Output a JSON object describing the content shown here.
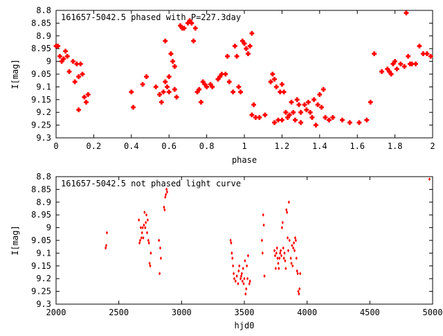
{
  "chart_data": [
    {
      "type": "scatter",
      "title": "161657-5042.5 phased with P=227.3day",
      "xlabel": "phase",
      "ylabel": "I[mag]",
      "xlim": [
        0,
        2
      ],
      "ylim": [
        9.3,
        8.8
      ],
      "y_inverted": true,
      "x_ticks": [
        0,
        0.2,
        0.4,
        0.6,
        0.8,
        1,
        1.2,
        1.4,
        1.6,
        1.8,
        2
      ],
      "x_tick_labels": [
        "0",
        "0.2",
        "0.4",
        "0.6",
        "0.8",
        "1",
        "1.2",
        "1.4",
        "1.6",
        "1.8",
        "2"
      ],
      "y_ticks": [
        8.8,
        8.85,
        8.9,
        8.95,
        9,
        9.05,
        9.1,
        9.15,
        9.2,
        9.25,
        9.3
      ],
      "y_tick_labels": [
        "8.8",
        "8.85",
        "8.9",
        "8.95",
        "9",
        "9.05",
        "9.1",
        "9.15",
        "9.2",
        "9.25",
        "9.3"
      ],
      "grid": false,
      "marker_color": "#ff0000",
      "points": [
        [
          0.0,
          8.94
        ],
        [
          0.01,
          8.94
        ],
        [
          0.02,
          8.98
        ],
        [
          0.03,
          9.0
        ],
        [
          0.04,
          8.99
        ],
        [
          0.05,
          8.96
        ],
        [
          0.06,
          8.98
        ],
        [
          0.07,
          9.04
        ],
        [
          0.09,
          9.0
        ],
        [
          0.1,
          9.08
        ],
        [
          0.11,
          9.01
        ],
        [
          0.12,
          9.06
        ],
        [
          0.13,
          9.01
        ],
        [
          0.12,
          9.19
        ],
        [
          0.14,
          9.05
        ],
        [
          0.15,
          9.14
        ],
        [
          0.16,
          9.16
        ],
        [
          0.17,
          9.13
        ],
        [
          0.4,
          9.12
        ],
        [
          0.41,
          9.18
        ],
        [
          0.46,
          9.09
        ],
        [
          0.48,
          9.06
        ],
        [
          0.53,
          9.1
        ],
        [
          0.55,
          9.13
        ],
        [
          0.56,
          9.16
        ],
        [
          0.57,
          9.12
        ],
        [
          0.58,
          9.08
        ],
        [
          0.59,
          9.1
        ],
        [
          0.58,
          8.92
        ],
        [
          0.6,
          9.12
        ],
        [
          0.6,
          9.06
        ],
        [
          0.61,
          8.97
        ],
        [
          0.62,
          9.0
        ],
        [
          0.63,
          9.11
        ],
        [
          0.63,
          9.02
        ],
        [
          0.64,
          9.14
        ],
        [
          0.66,
          8.86
        ],
        [
          0.67,
          8.87
        ],
        [
          0.68,
          8.87
        ],
        [
          0.7,
          8.85
        ],
        [
          0.71,
          8.84
        ],
        [
          0.72,
          8.85
        ],
        [
          0.73,
          8.92
        ],
        [
          0.74,
          8.87
        ],
        [
          0.75,
          9.12
        ],
        [
          0.76,
          9.11
        ],
        [
          0.77,
          9.16
        ],
        [
          0.78,
          9.08
        ],
        [
          0.79,
          9.09
        ],
        [
          0.8,
          9.1
        ],
        [
          0.82,
          9.09
        ],
        [
          0.83,
          9.1
        ],
        [
          0.86,
          9.07
        ],
        [
          0.87,
          9.06
        ],
        [
          0.88,
          9.05
        ],
        [
          0.9,
          9.05
        ],
        [
          0.91,
          8.98
        ],
        [
          0.92,
          9.08
        ],
        [
          0.94,
          9.12
        ],
        [
          0.95,
          8.94
        ],
        [
          0.96,
          8.98
        ],
        [
          0.97,
          9.1
        ],
        [
          0.98,
          9.12
        ],
        [
          0.99,
          8.92
        ],
        [
          1.0,
          8.93
        ],
        [
          1.01,
          8.95
        ],
        [
          1.02,
          8.97
        ],
        [
          1.03,
          8.94
        ],
        [
          1.04,
          8.89
        ],
        [
          1.04,
          9.21
        ],
        [
          1.05,
          9.17
        ],
        [
          1.06,
          9.22
        ],
        [
          1.08,
          9.22
        ],
        [
          1.11,
          9.21
        ],
        [
          1.14,
          9.08
        ],
        [
          1.15,
          9.05
        ],
        [
          1.16,
          9.07
        ],
        [
          1.17,
          9.1
        ],
        [
          1.16,
          9.24
        ],
        [
          1.18,
          9.23
        ],
        [
          1.19,
          9.12
        ],
        [
          1.2,
          9.09
        ],
        [
          1.2,
          9.23
        ],
        [
          1.21,
          9.12
        ],
        [
          1.22,
          9.2
        ],
        [
          1.23,
          9.22
        ],
        [
          1.24,
          9.21
        ],
        [
          1.25,
          9.16
        ],
        [
          1.26,
          9.2
        ],
        [
          1.27,
          9.23
        ],
        [
          1.28,
          9.15
        ],
        [
          1.29,
          9.17
        ],
        [
          1.3,
          9.2
        ],
        [
          1.3,
          9.24
        ],
        [
          1.32,
          9.17
        ],
        [
          1.33,
          9.19
        ],
        [
          1.34,
          9.16
        ],
        [
          1.35,
          9.2
        ],
        [
          1.36,
          9.22
        ],
        [
          1.37,
          9.15
        ],
        [
          1.38,
          9.25
        ],
        [
          1.39,
          9.17
        ],
        [
          1.4,
          9.13
        ],
        [
          1.41,
          9.18
        ],
        [
          1.42,
          9.11
        ],
        [
          1.43,
          9.22
        ],
        [
          1.45,
          9.23
        ],
        [
          1.47,
          9.22
        ],
        [
          1.52,
          9.23
        ],
        [
          1.56,
          9.24
        ],
        [
          1.61,
          9.24
        ],
        [
          1.65,
          9.23
        ],
        [
          1.67,
          9.16
        ],
        [
          1.69,
          8.97
        ],
        [
          1.73,
          9.04
        ],
        [
          1.76,
          9.03
        ],
        [
          1.77,
          9.04
        ],
        [
          1.78,
          9.05
        ],
        [
          1.79,
          9.01
        ],
        [
          1.8,
          9.0
        ],
        [
          1.81,
          9.03
        ],
        [
          1.83,
          9.01
        ],
        [
          1.85,
          9.02
        ],
        [
          1.86,
          8.81
        ],
        [
          1.87,
          8.98
        ],
        [
          1.88,
          9.01
        ],
        [
          1.89,
          9.01
        ],
        [
          1.91,
          9.01
        ],
        [
          1.93,
          8.94
        ],
        [
          1.95,
          8.97
        ],
        [
          1.97,
          8.97
        ],
        [
          1.99,
          8.98
        ]
      ]
    },
    {
      "type": "scatter",
      "title": "161657-5042.5 not phased light curve",
      "xlabel": "hjd0",
      "ylabel": "I[mag]",
      "xlim": [
        2000,
        5000
      ],
      "ylim": [
        9.3,
        8.8
      ],
      "y_inverted": true,
      "x_ticks": [
        2000,
        2500,
        3000,
        3500,
        4000,
        4500,
        5000
      ],
      "x_tick_labels": [
        "2000",
        "2500",
        "3000",
        "3500",
        "4000",
        "4500",
        "5000"
      ],
      "y_ticks": [
        8.8,
        8.85,
        8.9,
        8.95,
        9,
        9.05,
        9.1,
        9.15,
        9.2,
        9.25,
        9.3
      ],
      "y_tick_labels": [
        "8.8",
        "8.85",
        "8.9",
        "8.95",
        "9",
        "9.05",
        "9.1",
        "9.15",
        "9.2",
        "9.25",
        "9.3"
      ],
      "grid": false,
      "marker_color": "#ff0000",
      "points": [
        [
          2395,
          9.08
        ],
        [
          2400,
          9.07
        ],
        [
          2405,
          9.02
        ],
        [
          2660,
          8.97
        ],
        [
          2665,
          9.06
        ],
        [
          2670,
          9.05
        ],
        [
          2675,
          9.0
        ],
        [
          2680,
          9.04
        ],
        [
          2685,
          9.02
        ],
        [
          2690,
          9.0
        ],
        [
          2695,
          9.04
        ],
        [
          2700,
          8.99
        ],
        [
          2705,
          8.94
        ],
        [
          2710,
          9.0
        ],
        [
          2715,
          8.98
        ],
        [
          2720,
          8.95
        ],
        [
          2725,
          9.02
        ],
        [
          2730,
          8.97
        ],
        [
          2735,
          9.05
        ],
        [
          2740,
          9.06
        ],
        [
          2745,
          9.14
        ],
        [
          2750,
          9.15
        ],
        [
          2755,
          9.1
        ],
        [
          2820,
          9.05
        ],
        [
          2825,
          9.18
        ],
        [
          2830,
          9.08
        ],
        [
          2835,
          9.12
        ],
        [
          2860,
          8.92
        ],
        [
          2865,
          8.93
        ],
        [
          2870,
          8.88
        ],
        [
          2875,
          8.87
        ],
        [
          2880,
          8.85
        ],
        [
          2885,
          8.86
        ],
        [
          3390,
          9.05
        ],
        [
          3395,
          9.06
        ],
        [
          3400,
          9.1
        ],
        [
          3405,
          9.12
        ],
        [
          3410,
          9.15
        ],
        [
          3415,
          9.18
        ],
        [
          3420,
          9.2
        ],
        [
          3430,
          9.21
        ],
        [
          3440,
          9.19
        ],
        [
          3450,
          9.22
        ],
        [
          3455,
          9.17
        ],
        [
          3460,
          9.15
        ],
        [
          3470,
          9.2
        ],
        [
          3475,
          9.19
        ],
        [
          3480,
          9.18
        ],
        [
          3485,
          9.21
        ],
        [
          3490,
          9.16
        ],
        [
          3495,
          9.22
        ],
        [
          3500,
          9.2
        ],
        [
          3505,
          9.13
        ],
        [
          3510,
          9.26
        ],
        [
          3515,
          9.24
        ],
        [
          3520,
          9.15
        ],
        [
          3525,
          9.2
        ],
        [
          3530,
          9.11
        ],
        [
          3540,
          9.22
        ],
        [
          3545,
          9.21
        ],
        [
          3640,
          9.05
        ],
        [
          3645,
          9.1
        ],
        [
          3650,
          8.95
        ],
        [
          3655,
          8.99
        ],
        [
          3660,
          9.19
        ],
        [
          3740,
          9.09
        ],
        [
          3745,
          9.11
        ],
        [
          3750,
          9.16
        ],
        [
          3755,
          9.1
        ],
        [
          3760,
          9.08
        ],
        [
          3765,
          9.12
        ],
        [
          3770,
          9.14
        ],
        [
          3775,
          9.16
        ],
        [
          3780,
          9.12
        ],
        [
          3785,
          9.1
        ],
        [
          3790,
          9.09
        ],
        [
          3795,
          9.11
        ],
        [
          3800,
          9.0
        ],
        [
          3805,
          8.98
        ],
        [
          3810,
          9.08
        ],
        [
          3815,
          9.12
        ],
        [
          3820,
          9.1
        ],
        [
          3825,
          9.13
        ],
        [
          3830,
          9.16
        ],
        [
          3835,
          8.93
        ],
        [
          3840,
          8.94
        ],
        [
          3845,
          9.04
        ],
        [
          3850,
          9.09
        ],
        [
          3855,
          8.9
        ],
        [
          3860,
          9.05
        ],
        [
          3870,
          9.12
        ],
        [
          3875,
          9.14
        ],
        [
          3880,
          9.07
        ],
        [
          3885,
          9.15
        ],
        [
          3890,
          9.08
        ],
        [
          3895,
          9.06
        ],
        [
          3900,
          9.09
        ],
        [
          3905,
          9.04
        ],
        [
          3910,
          9.05
        ],
        [
          3915,
          9.12
        ],
        [
          3920,
          9.17
        ],
        [
          3925,
          9.18
        ],
        [
          3930,
          9.25
        ],
        [
          3935,
          9.26
        ],
        [
          3940,
          9.24
        ],
        [
          3945,
          9.18
        ],
        [
          4975,
          8.81
        ]
      ]
    }
  ]
}
